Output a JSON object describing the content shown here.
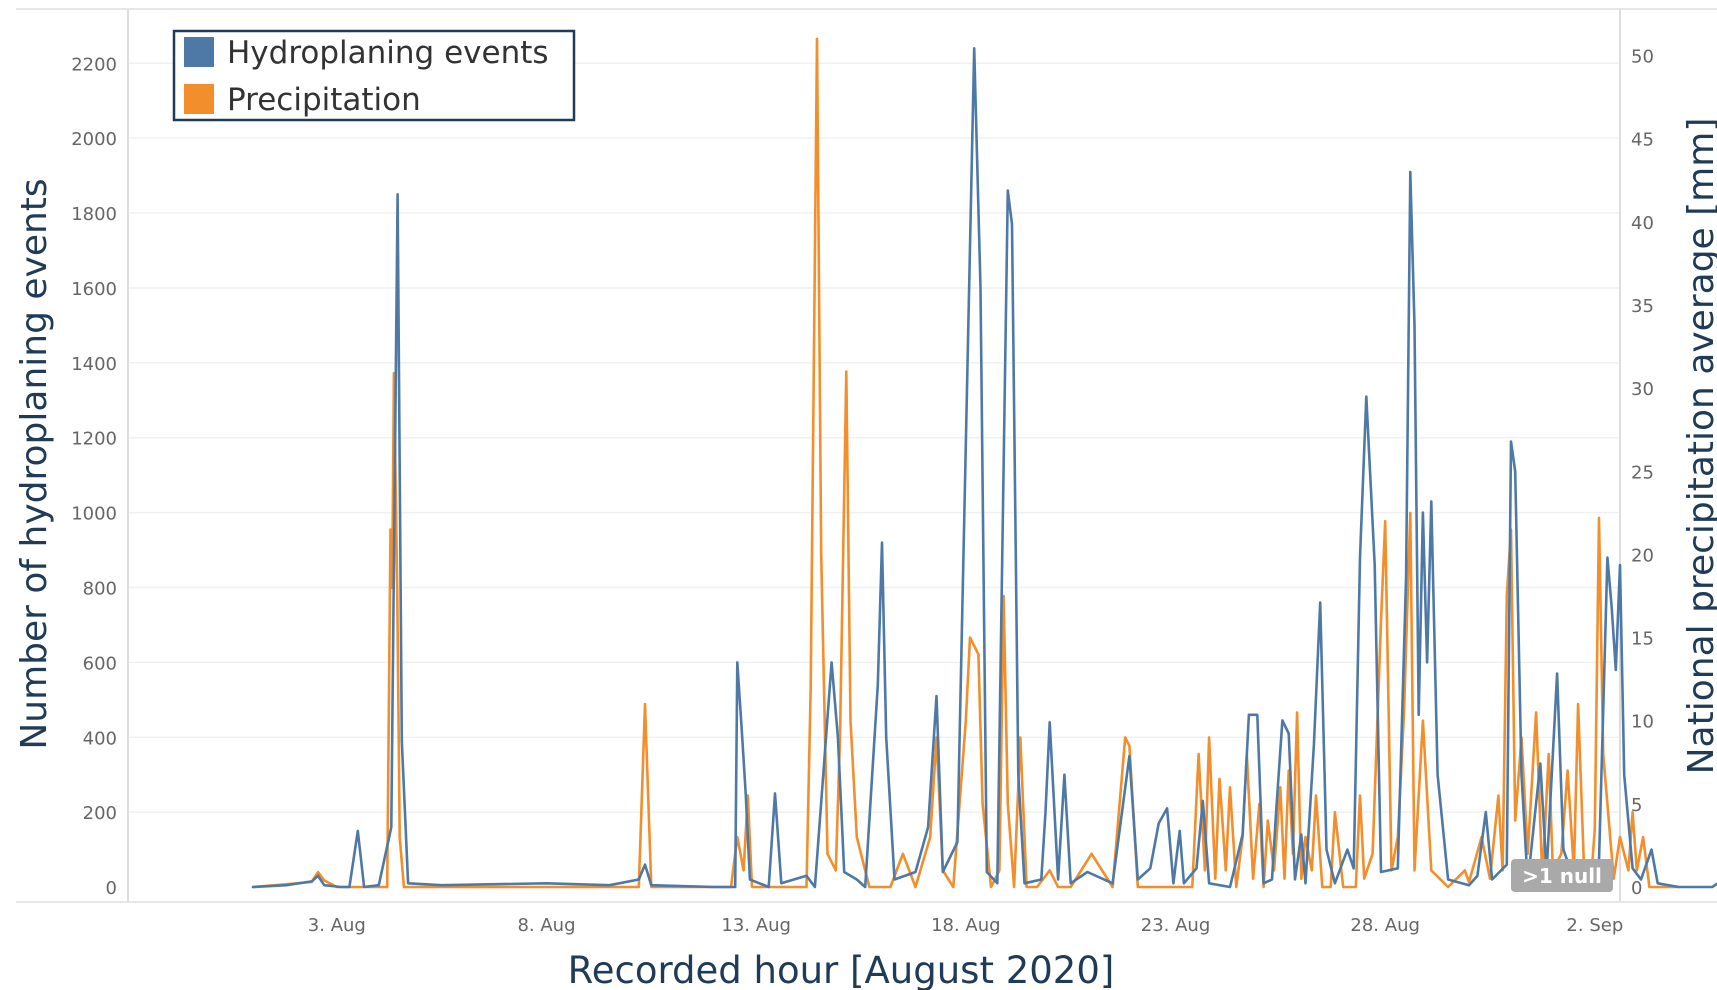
{
  "chart_data": {
    "type": "line",
    "xlabel": "Recorded hour [August 2020]",
    "ylabel_left": "Number of hydroplaning events",
    "ylabel_right": "National precipitation average [mm]",
    "x_ticks": [
      "3. Aug",
      "8. Aug",
      "13. Aug",
      "18. Aug",
      "23. Aug",
      "28. Aug",
      "2. Sep"
    ],
    "x_tick_days": [
      3,
      8,
      13,
      18,
      23,
      28,
      33
    ],
    "xlim_days": [
      -1.98,
      33.6
    ],
    "y_left_ticks": [
      0,
      200,
      400,
      600,
      800,
      1000,
      1200,
      1400,
      1600,
      1800,
      2000,
      2200
    ],
    "y_left_lim": [
      -40,
      2345
    ],
    "y_right_ticks": [
      0,
      5,
      10,
      15,
      20,
      25,
      30,
      35,
      40,
      45,
      50
    ],
    "y_right_lim": [
      -0.9,
      52.8
    ],
    "grid": "horizontal",
    "legend_position": "top-left",
    "null_indicator": ">1 null",
    "series": [
      {
        "name": "Hydroplaning events",
        "axis": "left",
        "color": "#4e79a7",
        "points": [
          [
            1,
            0
          ],
          [
            1.8,
            5
          ],
          [
            2.4,
            15
          ],
          [
            2.55,
            30
          ],
          [
            2.7,
            5
          ],
          [
            3.1,
            0
          ],
          [
            3.3,
            0
          ],
          [
            3.5,
            150
          ],
          [
            3.65,
            0
          ],
          [
            4.0,
            5
          ],
          [
            4.3,
            160
          ],
          [
            4.45,
            1850
          ],
          [
            4.55,
            390
          ],
          [
            4.7,
            10
          ],
          [
            5.5,
            5
          ],
          [
            8,
            10
          ],
          [
            9.5,
            5
          ],
          [
            10.2,
            20
          ],
          [
            10.35,
            60
          ],
          [
            10.5,
            5
          ],
          [
            12,
            0
          ],
          [
            12.5,
            0
          ],
          [
            12.55,
            600
          ],
          [
            12.65,
            430
          ],
          [
            12.75,
            250
          ],
          [
            12.85,
            20
          ],
          [
            13.3,
            0
          ],
          [
            13.45,
            250
          ],
          [
            13.6,
            10
          ],
          [
            14.2,
            30
          ],
          [
            14.4,
            0
          ],
          [
            14.8,
            600
          ],
          [
            14.95,
            400
          ],
          [
            15.1,
            40
          ],
          [
            15.4,
            20
          ],
          [
            15.6,
            0
          ],
          [
            15.9,
            540
          ],
          [
            16.0,
            920
          ],
          [
            16.1,
            400
          ],
          [
            16.3,
            20
          ],
          [
            16.8,
            40
          ],
          [
            17.1,
            160
          ],
          [
            17.3,
            510
          ],
          [
            17.45,
            40
          ],
          [
            17.8,
            120
          ],
          [
            18.2,
            2240
          ],
          [
            18.35,
            1600
          ],
          [
            18.5,
            40
          ],
          [
            18.75,
            10
          ],
          [
            19.0,
            1860
          ],
          [
            19.1,
            1770
          ],
          [
            19.25,
            300
          ],
          [
            19.4,
            10
          ],
          [
            19.8,
            20
          ],
          [
            19.9,
            200
          ],
          [
            20.0,
            440
          ],
          [
            20.2,
            20
          ],
          [
            20.35,
            300
          ],
          [
            20.5,
            10
          ],
          [
            20.9,
            40
          ],
          [
            21.5,
            10
          ],
          [
            21.9,
            350
          ],
          [
            22.1,
            20
          ],
          [
            22.4,
            50
          ],
          [
            22.6,
            170
          ],
          [
            22.8,
            210
          ],
          [
            22.95,
            10
          ],
          [
            23.1,
            150
          ],
          [
            23.2,
            10
          ],
          [
            23.5,
            50
          ],
          [
            23.65,
            230
          ],
          [
            23.8,
            10
          ],
          [
            24.3,
            0
          ],
          [
            24.6,
            140
          ],
          [
            24.75,
            460
          ],
          [
            24.95,
            460
          ],
          [
            25.1,
            10
          ],
          [
            25.3,
            20
          ],
          [
            25.4,
            200
          ],
          [
            25.55,
            445
          ],
          [
            25.7,
            410
          ],
          [
            25.85,
            20
          ],
          [
            26.0,
            140
          ],
          [
            26.1,
            10
          ],
          [
            26.3,
            380
          ],
          [
            26.45,
            760
          ],
          [
            26.6,
            100
          ],
          [
            26.8,
            10
          ],
          [
            27.1,
            100
          ],
          [
            27.25,
            50
          ],
          [
            27.4,
            880
          ],
          [
            27.55,
            1310
          ],
          [
            27.75,
            860
          ],
          [
            27.9,
            40
          ],
          [
            28.3,
            50
          ],
          [
            28.5,
            830
          ],
          [
            28.6,
            1910
          ],
          [
            28.7,
            1500
          ],
          [
            28.8,
            460
          ],
          [
            28.9,
            1000
          ],
          [
            29.0,
            600
          ],
          [
            29.1,
            1030
          ],
          [
            29.25,
            300
          ],
          [
            29.5,
            20
          ],
          [
            30.0,
            5
          ],
          [
            30.2,
            30
          ],
          [
            30.4,
            200
          ],
          [
            30.55,
            20
          ],
          [
            30.9,
            60
          ],
          [
            31.0,
            1190
          ],
          [
            31.1,
            1110
          ],
          [
            31.25,
            300
          ],
          [
            31.4,
            10
          ],
          [
            31.7,
            330
          ],
          [
            31.85,
            40
          ],
          [
            32.1,
            570
          ],
          [
            32.25,
            100
          ],
          [
            32.5,
            20
          ],
          [
            32.75,
            10
          ],
          [
            33.1,
            70
          ],
          [
            33.2,
            470
          ],
          [
            33.3,
            880
          ],
          [
            33.4,
            750
          ],
          [
            33.5,
            580
          ],
          [
            33.6,
            860
          ],
          [
            33.7,
            300
          ],
          [
            33.9,
            50
          ],
          [
            34.1,
            20
          ],
          [
            34.35,
            100
          ],
          [
            34.5,
            10
          ],
          [
            35.0,
            0
          ],
          [
            35.8,
            0
          ],
          [
            36.0,
            15
          ],
          [
            36.2,
            0
          ]
        ]
      },
      {
        "name": "Precipitation",
        "axis": "right",
        "color": "#f28e2b",
        "points": [
          [
            1,
            0
          ],
          [
            2.4,
            0.3
          ],
          [
            2.55,
            0.9
          ],
          [
            2.7,
            0.4
          ],
          [
            3.0,
            0
          ],
          [
            4.2,
            0
          ],
          [
            4.28,
            21.5
          ],
          [
            4.32,
            18
          ],
          [
            4.36,
            30.9
          ],
          [
            4.44,
            18
          ],
          [
            4.5,
            3
          ],
          [
            4.6,
            0
          ],
          [
            7.0,
            0
          ],
          [
            10.2,
            0
          ],
          [
            10.35,
            11
          ],
          [
            10.5,
            0
          ],
          [
            12.4,
            0
          ],
          [
            12.55,
            3
          ],
          [
            12.7,
            1
          ],
          [
            12.8,
            5.5
          ],
          [
            12.9,
            0
          ],
          [
            14.2,
            0
          ],
          [
            14.3,
            12
          ],
          [
            14.45,
            51
          ],
          [
            14.55,
            20
          ],
          [
            14.7,
            2
          ],
          [
            14.9,
            1
          ],
          [
            15.0,
            9
          ],
          [
            15.15,
            31
          ],
          [
            15.25,
            10
          ],
          [
            15.4,
            3
          ],
          [
            15.6,
            1
          ],
          [
            15.7,
            0
          ],
          [
            16.2,
            0
          ],
          [
            16.5,
            2
          ],
          [
            16.8,
            0
          ],
          [
            17.15,
            3
          ],
          [
            17.3,
            9
          ],
          [
            17.45,
            1
          ],
          [
            17.7,
            0
          ],
          [
            18.0,
            10
          ],
          [
            18.1,
            15
          ],
          [
            18.3,
            14
          ],
          [
            18.4,
            5
          ],
          [
            18.6,
            0
          ],
          [
            18.8,
            1
          ],
          [
            18.9,
            17.5
          ],
          [
            19.0,
            5
          ],
          [
            19.15,
            0
          ],
          [
            19.3,
            9
          ],
          [
            19.45,
            0
          ],
          [
            19.7,
            0
          ],
          [
            20.0,
            1
          ],
          [
            20.2,
            0
          ],
          [
            20.5,
            0
          ],
          [
            21.0,
            2
          ],
          [
            21.5,
            0
          ],
          [
            21.8,
            9
          ],
          [
            21.9,
            8.5
          ],
          [
            22.1,
            0
          ],
          [
            23.0,
            0
          ],
          [
            23.4,
            0
          ],
          [
            23.55,
            8
          ],
          [
            23.7,
            1
          ],
          [
            23.8,
            9
          ],
          [
            23.95,
            0.5
          ],
          [
            24.05,
            6.5
          ],
          [
            24.2,
            1
          ],
          [
            24.3,
            6
          ],
          [
            24.45,
            0
          ],
          [
            24.6,
            3
          ],
          [
            24.7,
            8
          ],
          [
            24.85,
            0.5
          ],
          [
            25.0,
            5
          ],
          [
            25.1,
            0
          ],
          [
            25.2,
            4
          ],
          [
            25.35,
            1
          ],
          [
            25.5,
            6
          ],
          [
            25.6,
            0.5
          ],
          [
            25.7,
            7
          ],
          [
            25.8,
            2
          ],
          [
            25.9,
            10.5
          ],
          [
            26.0,
            0.5
          ],
          [
            26.1,
            3
          ],
          [
            26.25,
            1
          ],
          [
            26.35,
            5.5
          ],
          [
            26.5,
            0
          ],
          [
            26.7,
            0
          ],
          [
            26.8,
            4.5
          ],
          [
            27.0,
            0
          ],
          [
            27.3,
            0
          ],
          [
            27.4,
            5.5
          ],
          [
            27.5,
            0.5
          ],
          [
            27.7,
            2
          ],
          [
            27.9,
            16
          ],
          [
            28.0,
            22
          ],
          [
            28.15,
            1
          ],
          [
            28.3,
            3
          ],
          [
            28.45,
            10.5
          ],
          [
            28.6,
            22.5
          ],
          [
            28.7,
            1
          ],
          [
            28.9,
            10
          ],
          [
            29.1,
            1
          ],
          [
            29.3,
            0.5
          ],
          [
            29.5,
            0
          ],
          [
            29.7,
            0.5
          ],
          [
            29.9,
            1
          ],
          [
            30.0,
            0.3
          ],
          [
            30.3,
            3
          ],
          [
            30.5,
            0.5
          ],
          [
            30.7,
            5.5
          ],
          [
            30.8,
            1
          ],
          [
            30.9,
            17.5
          ],
          [
            31.0,
            21.5
          ],
          [
            31.1,
            4
          ],
          [
            31.25,
            9
          ],
          [
            31.4,
            2
          ],
          [
            31.6,
            10.5
          ],
          [
            31.75,
            0.5
          ],
          [
            31.9,
            8
          ],
          [
            32.0,
            1
          ],
          [
            32.2,
            2
          ],
          [
            32.35,
            7
          ],
          [
            32.5,
            1
          ],
          [
            32.6,
            11
          ],
          [
            32.75,
            0.5
          ],
          [
            32.9,
            0
          ],
          [
            33.0,
            3.5
          ],
          [
            33.1,
            22.2
          ],
          [
            33.2,
            8
          ],
          [
            33.3,
            5
          ],
          [
            33.45,
            0.5
          ],
          [
            33.6,
            3
          ],
          [
            33.8,
            1
          ],
          [
            33.9,
            4.5
          ],
          [
            34.0,
            1
          ],
          [
            34.15,
            3
          ],
          [
            34.3,
            0
          ],
          [
            35.0,
            0
          ]
        ]
      }
    ]
  }
}
